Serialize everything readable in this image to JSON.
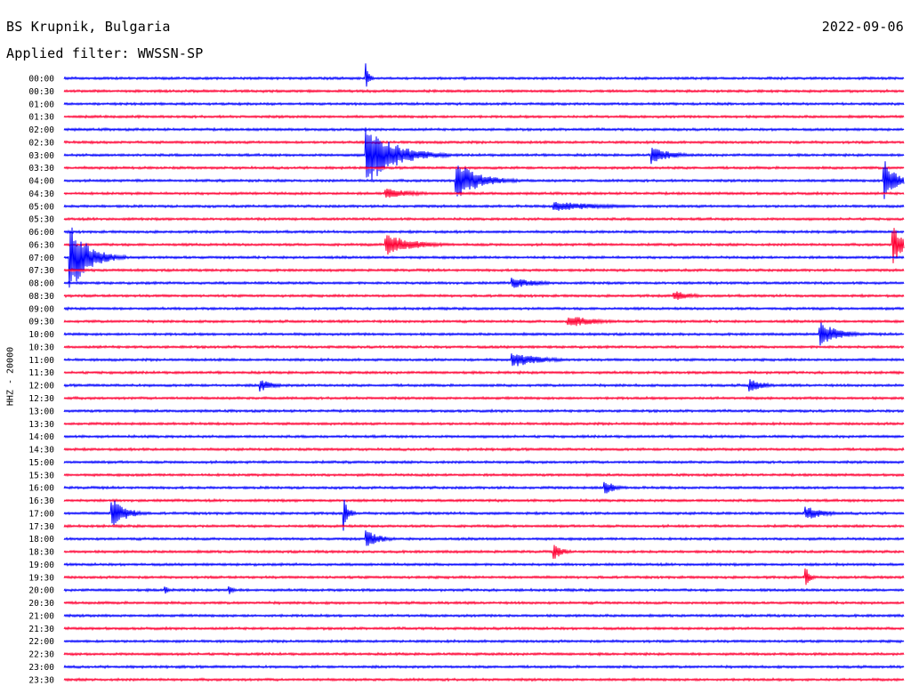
{
  "header": {
    "station": "BS Krupnik, Bulgaria",
    "date": "2022-09-06",
    "filter": "Applied filter: WWSSN-SP"
  },
  "axis": {
    "channel_label": "HHZ - 20000"
  },
  "colors": {
    "even_trace": "#0000ff",
    "odd_trace": "#ff0033",
    "background": "#ffffff",
    "text": "#000000"
  },
  "chart_data": {
    "type": "line",
    "title": "BS Krupnik, Bulgaria",
    "subtitle": "Applied filter: WWSSN-SP",
    "ylabel": "HHZ - 20000",
    "xlabel": "",
    "grid": false,
    "legend": "none",
    "rows": [
      "00:00",
      "00:30",
      "01:00",
      "01:30",
      "02:00",
      "02:30",
      "03:00",
      "03:30",
      "04:00",
      "04:30",
      "05:00",
      "05:30",
      "06:00",
      "06:30",
      "07:00",
      "07:30",
      "08:00",
      "08:30",
      "09:00",
      "09:30",
      "10:00",
      "10:30",
      "11:00",
      "11:30",
      "12:00",
      "12:30",
      "13:00",
      "13:30",
      "14:00",
      "14:30",
      "15:00",
      "15:30",
      "16:00",
      "16:30",
      "17:00",
      "17:30",
      "18:00",
      "18:30",
      "19:00",
      "19:30",
      "20:00",
      "20:30",
      "21:00",
      "21:30",
      "22:00",
      "22:30",
      "23:00",
      "23:30"
    ],
    "row_duration_min": 30,
    "events": [
      {
        "row": "00:00",
        "minute": 10.8,
        "amplitude": 16,
        "duration_min": 0.3
      },
      {
        "row": "03:00",
        "minute": 10.8,
        "amplitude": 35,
        "duration_min": 3
      },
      {
        "row": "03:00",
        "minute": 21.0,
        "amplitude": 10,
        "duration_min": 2
      },
      {
        "row": "04:00",
        "minute": 14.0,
        "amplitude": 22,
        "duration_min": 2.5
      },
      {
        "row": "04:00",
        "minute": 29.3,
        "amplitude": 24,
        "duration_min": 1.2
      },
      {
        "row": "04:30",
        "minute": 11.5,
        "amplitude": 6,
        "duration_min": 3
      },
      {
        "row": "05:00",
        "minute": 17.5,
        "amplitude": 6,
        "duration_min": 5
      },
      {
        "row": "06:30",
        "minute": 11.5,
        "amplitude": 12,
        "duration_min": 3
      },
      {
        "row": "06:30",
        "minute": 29.6,
        "amplitude": 26,
        "duration_min": 1
      },
      {
        "row": "07:00",
        "minute": 0.2,
        "amplitude": 40,
        "duration_min": 2
      },
      {
        "row": "08:00",
        "minute": 16.0,
        "amplitude": 6,
        "duration_min": 3
      },
      {
        "row": "08:30",
        "minute": 21.8,
        "amplitude": 6,
        "duration_min": 2
      },
      {
        "row": "09:30",
        "minute": 18.0,
        "amplitude": 7,
        "duration_min": 3
      },
      {
        "row": "10:00",
        "minute": 27.0,
        "amplitude": 14,
        "duration_min": 2
      },
      {
        "row": "11:00",
        "minute": 16.0,
        "amplitude": 9,
        "duration_min": 3
      },
      {
        "row": "12:00",
        "minute": 7.0,
        "amplitude": 7,
        "duration_min": 1.5
      },
      {
        "row": "12:00",
        "minute": 24.5,
        "amplitude": 8,
        "duration_min": 1.5
      },
      {
        "row": "16:00",
        "minute": 19.3,
        "amplitude": 10,
        "duration_min": 1
      },
      {
        "row": "17:00",
        "minute": 1.7,
        "amplitude": 18,
        "duration_min": 1.5
      },
      {
        "row": "17:00",
        "minute": 10.0,
        "amplitude": 18,
        "duration_min": 0.5
      },
      {
        "row": "17:00",
        "minute": 26.5,
        "amplitude": 8,
        "duration_min": 2
      },
      {
        "row": "18:00",
        "minute": 10.8,
        "amplitude": 10,
        "duration_min": 1.5
      },
      {
        "row": "18:30",
        "minute": 17.5,
        "amplitude": 9,
        "duration_min": 1
      },
      {
        "row": "19:30",
        "minute": 26.5,
        "amplitude": 12,
        "duration_min": 0.5
      },
      {
        "row": "20:00",
        "minute": 3.6,
        "amplitude": 6,
        "duration_min": 0.5
      },
      {
        "row": "20:00",
        "minute": 5.9,
        "amplitude": 6,
        "duration_min": 0.5
      }
    ]
  }
}
